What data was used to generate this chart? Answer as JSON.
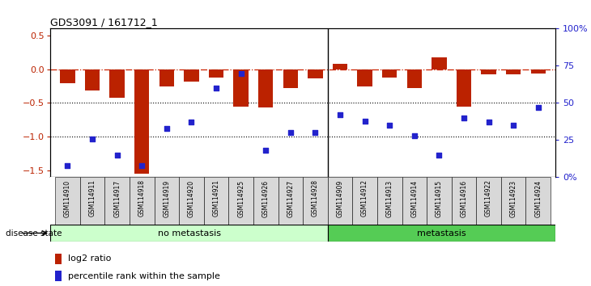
{
  "title": "GDS3091 / 161712_1",
  "samples": [
    "GSM114910",
    "GSM114911",
    "GSM114917",
    "GSM114918",
    "GSM114919",
    "GSM114920",
    "GSM114921",
    "GSM114925",
    "GSM114926",
    "GSM114927",
    "GSM114928",
    "GSM114909",
    "GSM114912",
    "GSM114913",
    "GSM114914",
    "GSM114915",
    "GSM114916",
    "GSM114922",
    "GSM114923",
    "GSM114924"
  ],
  "log2_ratio": [
    -0.21,
    -0.31,
    -0.42,
    -1.55,
    -0.25,
    -0.18,
    -0.13,
    -0.55,
    -0.57,
    -0.28,
    -0.14,
    0.08,
    -0.25,
    -0.12,
    -0.28,
    0.18,
    -0.55,
    -0.08,
    -0.08,
    -0.06
  ],
  "percentile_rank": [
    8,
    26,
    15,
    8,
    33,
    37,
    60,
    70,
    18,
    30,
    30,
    42,
    38,
    35,
    28,
    15,
    40,
    37,
    35,
    47
  ],
  "no_metastasis_count": 11,
  "metastasis_count": 9,
  "bar_color": "#bb2200",
  "dot_color": "#2222cc",
  "ref_line_color": "#cc2200",
  "ylim_left": [
    -1.6,
    0.6
  ],
  "ylim_right": [
    0,
    100
  ],
  "yticks_left": [
    0.5,
    0.0,
    -0.5,
    -1.0,
    -1.5
  ],
  "yticks_right": [
    0,
    25,
    50,
    75,
    100
  ],
  "ytick_labels_right": [
    "0%",
    "25",
    "50",
    "75",
    "100%"
  ],
  "no_metastasis_color": "#ccffcc",
  "metastasis_color": "#55cc55",
  "disease_state_label": "disease state",
  "no_metastasis_label": "no metastasis",
  "metastasis_label": "metastasis",
  "legend_log2": "log2 ratio",
  "legend_pct": "percentile rank within the sample"
}
